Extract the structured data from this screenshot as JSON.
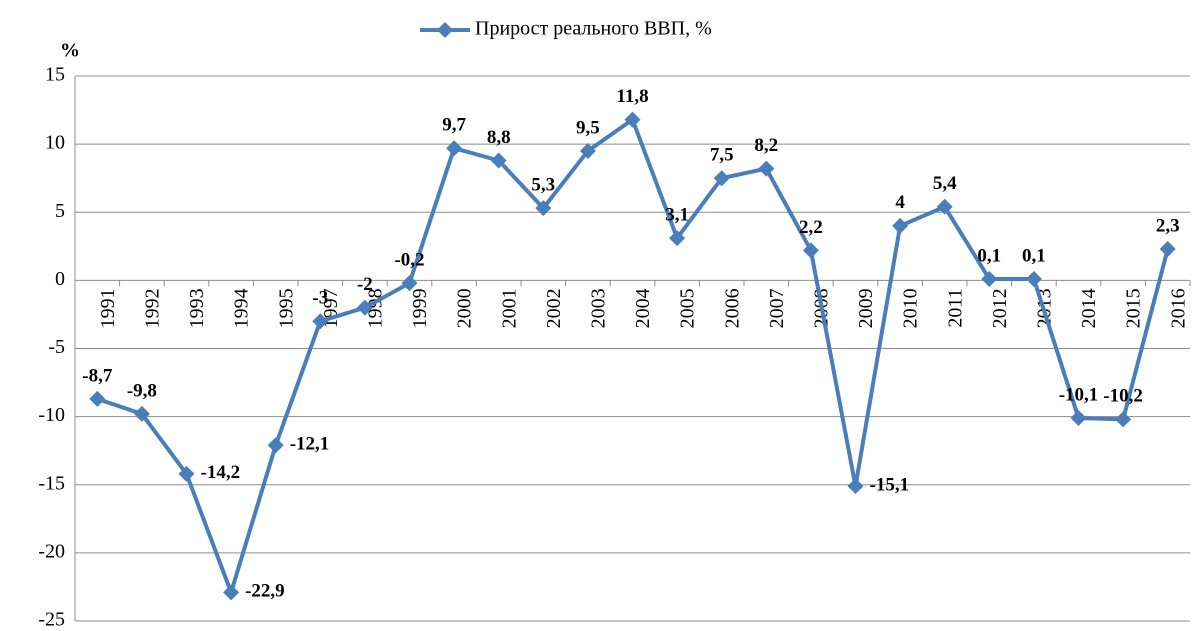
{
  "chart_data": {
    "type": "line",
    "y_label": "%",
    "categories": [
      "1991",
      "1992",
      "1993",
      "1994",
      "1995",
      "1997",
      "1998",
      "1999",
      "2000",
      "2001",
      "2002",
      "2003",
      "2004",
      "2005",
      "2006",
      "2007",
      "2008",
      "2009",
      "2010",
      "2011",
      "2012",
      "2013",
      "2014",
      "2015",
      "2016"
    ],
    "series": [
      {
        "name": "Прирост реального ВВП, %",
        "color": "#4a7ebb",
        "values": [
          -8.7,
          -9.8,
          -14.2,
          -22.9,
          -12.1,
          -3,
          -2,
          -0.2,
          9.7,
          8.8,
          5.3,
          9.5,
          11.8,
          3.1,
          7.5,
          8.2,
          2.2,
          -15.1,
          4,
          5.4,
          0.1,
          0.1,
          -10.1,
          -10.2,
          2.3
        ],
        "value_labels": [
          "-8,7",
          "-9,8",
          "-14,2",
          "-22,9",
          "-12,1",
          "-3",
          "-2",
          "-0,2",
          "9,7",
          "8,8",
          "5,3",
          "9,5",
          "11,8",
          "3,1",
          "7,5",
          "8,2",
          "2,2",
          "-15,1",
          "4",
          "5,4",
          "0,1",
          "0,1",
          "-10,1",
          "-10,2",
          "2,3"
        ]
      }
    ],
    "ylim": [
      -25,
      15
    ],
    "yticks": [
      -25,
      -20,
      -15,
      -10,
      -5,
      0,
      5,
      10,
      15
    ],
    "grid": true,
    "legend": "top"
  }
}
